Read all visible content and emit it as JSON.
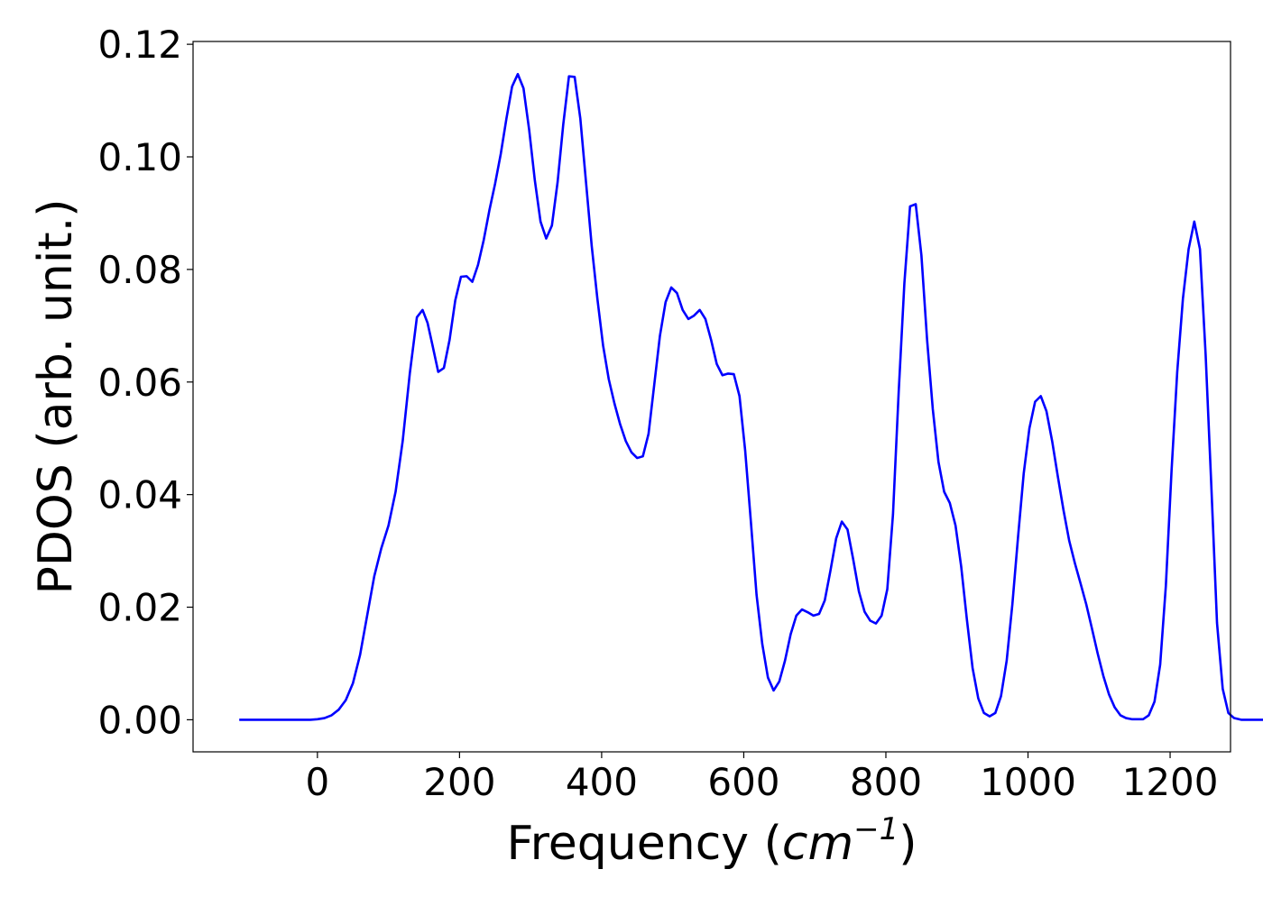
{
  "chart_data": {
    "type": "line",
    "xlabel_main": "Frequency (",
    "xlabel_unit_base": "cm",
    "xlabel_unit_exp": "−1",
    "xlabel_close": ")",
    "ylabel": "PDOS (arb. unit.)",
    "xlim": [
      -175,
      1285
    ],
    "ylim": [
      -0.0057,
      0.1205
    ],
    "grid": false,
    "x_ticks": [
      0,
      200,
      400,
      600,
      800,
      1000,
      1200
    ],
    "y_ticks": [
      0.0,
      0.02,
      0.04,
      0.06,
      0.08,
      0.1,
      0.12
    ],
    "x_tick_labels": [
      "0",
      "200",
      "400",
      "600",
      "800",
      "1000",
      "1200"
    ],
    "y_tick_labels": [
      "0.00",
      "0.02",
      "0.04",
      "0.06",
      "0.08",
      "0.10",
      "0.12"
    ],
    "series": [
      {
        "color": "#0000ff",
        "points": [
          [
            -110,
            0.0
          ],
          [
            -50,
            0.0
          ],
          [
            -10,
            0.0
          ],
          [
            0,
            0.0001
          ],
          [
            10,
            0.0003
          ],
          [
            20,
            0.0008
          ],
          [
            30,
            0.0018
          ],
          [
            40,
            0.0035
          ],
          [
            50,
            0.0065
          ],
          [
            60,
            0.0115
          ],
          [
            70,
            0.0185
          ],
          [
            80,
            0.0255
          ],
          [
            90,
            0.0305
          ],
          [
            100,
            0.0345
          ],
          [
            110,
            0.0405
          ],
          [
            120,
            0.0495
          ],
          [
            130,
            0.0615
          ],
          [
            140,
            0.0715
          ],
          [
            148,
            0.0728
          ],
          [
            155,
            0.0705
          ],
          [
            162,
            0.0665
          ],
          [
            170,
            0.0618
          ],
          [
            178,
            0.0625
          ],
          [
            186,
            0.0675
          ],
          [
            194,
            0.0745
          ],
          [
            202,
            0.0787
          ],
          [
            210,
            0.0788
          ],
          [
            218,
            0.0778
          ],
          [
            226,
            0.0808
          ],
          [
            234,
            0.0852
          ],
          [
            242,
            0.0905
          ],
          [
            250,
            0.0952
          ],
          [
            258,
            0.1005
          ],
          [
            266,
            0.1068
          ],
          [
            274,
            0.1125
          ],
          [
            282,
            0.1147
          ],
          [
            290,
            0.1122
          ],
          [
            298,
            0.1048
          ],
          [
            306,
            0.0958
          ],
          [
            314,
            0.0885
          ],
          [
            322,
            0.0855
          ],
          [
            330,
            0.0878
          ],
          [
            338,
            0.0955
          ],
          [
            346,
            0.1058
          ],
          [
            354,
            0.1143
          ],
          [
            362,
            0.1142
          ],
          [
            370,
            0.1068
          ],
          [
            378,
            0.0955
          ],
          [
            386,
            0.0842
          ],
          [
            394,
            0.0748
          ],
          [
            402,
            0.0665
          ],
          [
            410,
            0.0605
          ],
          [
            418,
            0.0562
          ],
          [
            426,
            0.0525
          ],
          [
            434,
            0.0495
          ],
          [
            442,
            0.0475
          ],
          [
            450,
            0.0465
          ],
          [
            458,
            0.0468
          ],
          [
            466,
            0.0508
          ],
          [
            474,
            0.0595
          ],
          [
            482,
            0.0682
          ],
          [
            490,
            0.0742
          ],
          [
            498,
            0.0768
          ],
          [
            506,
            0.0758
          ],
          [
            514,
            0.0728
          ],
          [
            522,
            0.0712
          ],
          [
            530,
            0.0718
          ],
          [
            538,
            0.0728
          ],
          [
            546,
            0.0712
          ],
          [
            554,
            0.0675
          ],
          [
            562,
            0.0632
          ],
          [
            570,
            0.0612
          ],
          [
            578,
            0.0615
          ],
          [
            586,
            0.0614
          ],
          [
            594,
            0.0575
          ],
          [
            602,
            0.0478
          ],
          [
            610,
            0.0352
          ],
          [
            618,
            0.0222
          ],
          [
            626,
            0.0135
          ],
          [
            634,
            0.0075
          ],
          [
            642,
            0.0052
          ],
          [
            650,
            0.0068
          ],
          [
            658,
            0.0105
          ],
          [
            666,
            0.0152
          ],
          [
            674,
            0.0185
          ],
          [
            682,
            0.0196
          ],
          [
            690,
            0.0191
          ],
          [
            698,
            0.0185
          ],
          [
            706,
            0.0188
          ],
          [
            714,
            0.0212
          ],
          [
            722,
            0.0265
          ],
          [
            730,
            0.0322
          ],
          [
            738,
            0.0352
          ],
          [
            746,
            0.0338
          ],
          [
            754,
            0.0285
          ],
          [
            762,
            0.0228
          ],
          [
            770,
            0.0192
          ],
          [
            778,
            0.0176
          ],
          [
            786,
            0.0171
          ],
          [
            794,
            0.0185
          ],
          [
            802,
            0.0232
          ],
          [
            810,
            0.0365
          ],
          [
            818,
            0.0582
          ],
          [
            826,
            0.0775
          ],
          [
            834,
            0.0912
          ],
          [
            842,
            0.0916
          ],
          [
            850,
            0.0825
          ],
          [
            858,
            0.0675
          ],
          [
            866,
            0.0552
          ],
          [
            874,
            0.0458
          ],
          [
            882,
            0.0405
          ],
          [
            890,
            0.0385
          ],
          [
            898,
            0.0345
          ],
          [
            906,
            0.0272
          ],
          [
            914,
            0.0178
          ],
          [
            922,
            0.0092
          ],
          [
            930,
            0.0038
          ],
          [
            938,
            0.0012
          ],
          [
            946,
            0.0006
          ],
          [
            954,
            0.0012
          ],
          [
            962,
            0.0042
          ],
          [
            970,
            0.0105
          ],
          [
            978,
            0.0205
          ],
          [
            986,
            0.0325
          ],
          [
            994,
            0.0438
          ],
          [
            1002,
            0.0518
          ],
          [
            1010,
            0.0565
          ],
          [
            1018,
            0.0575
          ],
          [
            1026,
            0.0548
          ],
          [
            1034,
            0.0495
          ],
          [
            1042,
            0.0432
          ],
          [
            1050,
            0.0372
          ],
          [
            1058,
            0.0318
          ],
          [
            1066,
            0.0278
          ],
          [
            1074,
            0.0242
          ],
          [
            1082,
            0.0205
          ],
          [
            1090,
            0.0162
          ],
          [
            1098,
            0.0118
          ],
          [
            1106,
            0.0078
          ],
          [
            1114,
            0.0045
          ],
          [
            1122,
            0.0022
          ],
          [
            1130,
            0.0008
          ],
          [
            1138,
            0.0003
          ],
          [
            1146,
            0.0001
          ],
          [
            1154,
            0.0001
          ],
          [
            1162,
            0.0001
          ],
          [
            1170,
            0.0008
          ],
          [
            1178,
            0.0032
          ],
          [
            1186,
            0.0098
          ],
          [
            1194,
            0.0238
          ],
          [
            1202,
            0.0442
          ],
          [
            1210,
            0.0618
          ],
          [
            1218,
            0.0748
          ],
          [
            1226,
            0.0836
          ],
          [
            1234,
            0.0885
          ],
          [
            1242,
            0.0836
          ],
          [
            1250,
            0.0648
          ],
          [
            1258,
            0.0415
          ],
          [
            1266,
            0.0172
          ],
          [
            1274,
            0.0055
          ],
          [
            1282,
            0.0012
          ],
          [
            1290,
            0.0003
          ],
          [
            1300,
            0.0
          ],
          [
            1350,
            0.0
          ],
          [
            1420,
            0.0
          ]
        ]
      }
    ]
  }
}
